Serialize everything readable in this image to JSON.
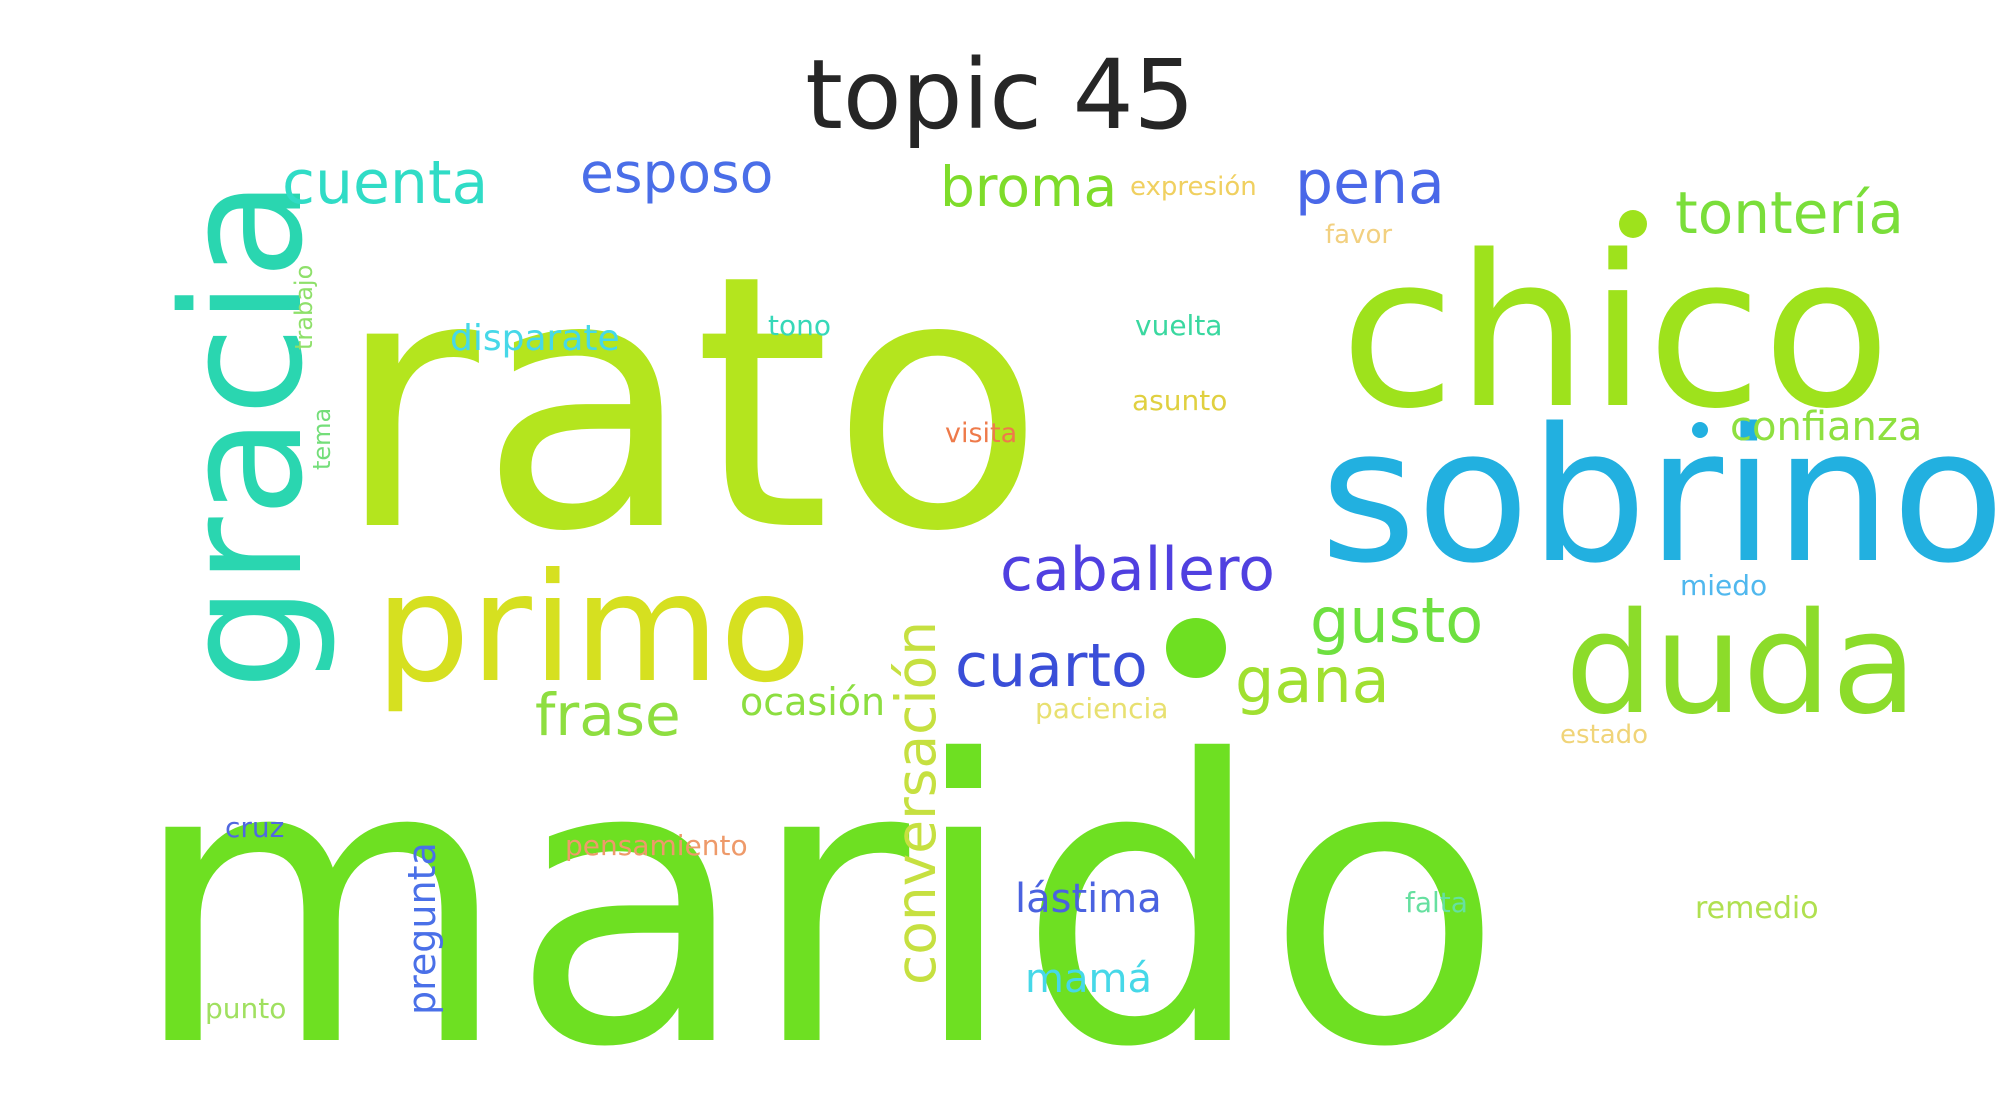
{
  "title": "topic 45",
  "words": [
    {
      "text": "marido",
      "color": "#6ee022"
    },
    {
      "text": "rato",
      "color": "#b4e51e"
    },
    {
      "text": "chico",
      "color": "#9ee21c"
    },
    {
      "text": "sobrino",
      "color": "#22b0e0"
    },
    {
      "text": "gracia",
      "color": "#2ad6b0"
    },
    {
      "text": "primo",
      "color": "#d6e020"
    },
    {
      "text": "duda",
      "color": "#8cdc2a"
    },
    {
      "text": "cuenta",
      "color": "#30dcc6"
    },
    {
      "text": "esposo",
      "color": "#4a6ee8"
    },
    {
      "text": "broma",
      "color": "#7edc2a"
    },
    {
      "text": "expresión",
      "color": "#f0d060"
    },
    {
      "text": "pena",
      "color": "#4a68e8"
    },
    {
      "text": "tontería",
      "color": "#7ade3a"
    },
    {
      "text": "favor",
      "color": "#f2d080"
    },
    {
      "text": "trabajo",
      "color": "#8ee06a"
    },
    {
      "text": "disparate",
      "color": "#46d8e8"
    },
    {
      "text": "tono",
      "color": "#36d8b8"
    },
    {
      "text": "vuelta",
      "color": "#3ad8a0"
    },
    {
      "text": "asunto",
      "color": "#e0d040"
    },
    {
      "text": "confianza",
      "color": "#8ee040"
    },
    {
      "text": "tema",
      "color": "#74de7a"
    },
    {
      "text": "visita",
      "color": "#ee7a4a"
    },
    {
      "text": "caballero",
      "color": "#5040e0"
    },
    {
      "text": "gusto",
      "color": "#6ee040"
    },
    {
      "text": "miedo",
      "color": "#50b8ee"
    },
    {
      "text": "conversación",
      "color": "#c6e040"
    },
    {
      "text": "cuarto",
      "color": "#3a4ed8"
    },
    {
      "text": "gana",
      "color": "#a0e030"
    },
    {
      "text": "frase",
      "color": "#8ede40"
    },
    {
      "text": "ocasión",
      "color": "#8cde40"
    },
    {
      "text": "paciencia",
      "color": "#e8e070"
    },
    {
      "text": "estado",
      "color": "#f0d478"
    },
    {
      "text": "cruz",
      "color": "#5068e0"
    },
    {
      "text": "pensamiento",
      "color": "#ee9a6a"
    },
    {
      "text": "pregunta",
      "color": "#4a70e8"
    },
    {
      "text": "lástima",
      "color": "#4a62e0"
    },
    {
      "text": "mamá",
      "color": "#46d8e8"
    },
    {
      "text": "falta",
      "color": "#66e0a0"
    },
    {
      "text": "remedio",
      "color": "#b0e050"
    },
    {
      "text": "punto",
      "color": "#a0e060"
    }
  ]
}
